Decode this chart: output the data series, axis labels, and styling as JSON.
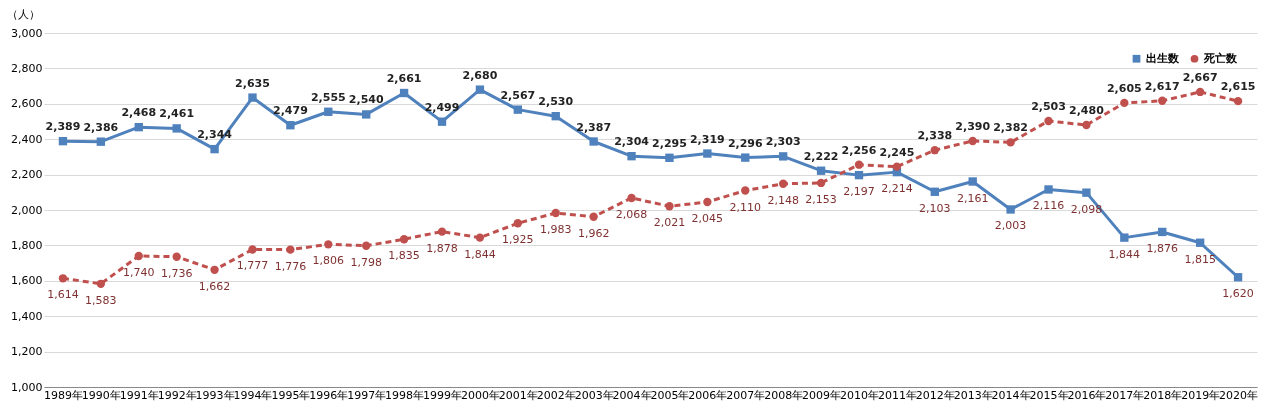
{
  "chart_data": {
    "type": "line",
    "ylabel": "（人）",
    "categories": [
      "1989年",
      "1990年",
      "1991年",
      "1992年",
      "1993年",
      "1994年",
      "1995年",
      "1996年",
      "1997年",
      "1998年",
      "1999年",
      "2000年",
      "2001年",
      "2002年",
      "2003年",
      "2004年",
      "2005年",
      "2006年",
      "2007年",
      "2008年",
      "2009年",
      "2010年",
      "2011年",
      "2012年",
      "2013年",
      "2014年",
      "2015年",
      "2016年",
      "2017年",
      "2018年",
      "2019年",
      "2020年"
    ],
    "series": [
      {
        "name": "出生数",
        "color": "#4f81bd",
        "marker": "square",
        "line_style": "solid",
        "values": [
          2389,
          2386,
          2468,
          2461,
          2344,
          2635,
          2479,
          2555,
          2540,
          2661,
          2499,
          2680,
          2567,
          2530,
          2387,
          2304,
          2295,
          2319,
          2296,
          2303,
          2222,
          2197,
          2214,
          2103,
          2161,
          2003,
          2116,
          2098,
          1844,
          1876,
          1815,
          1620
        ],
        "value_labels": [
          "2,389",
          "2,386",
          "2,468",
          "2,461",
          "2,344",
          "2,635",
          "2,479",
          "2,555",
          "2,540",
          "2,661",
          "2,499",
          "2,680",
          "2,567",
          "2,530",
          "2,387",
          "2,304",
          "2,295",
          "2,319",
          "2,296",
          "2,303",
          "2,222",
          "2,197",
          "2,214",
          "2,103",
          "2,161",
          "2,003",
          "2,116",
          "2,098",
          "1,844",
          "1,876",
          "1,815",
          "1,620"
        ]
      },
      {
        "name": "死亡数",
        "color": "#c0504d",
        "marker": "circle",
        "line_style": "dashed",
        "values": [
          1614,
          1583,
          1740,
          1736,
          1662,
          1777,
          1776,
          1806,
          1798,
          1835,
          1878,
          1844,
          1925,
          1983,
          1962,
          2068,
          2021,
          2045,
          2110,
          2148,
          2153,
          2256,
          2245,
          2338,
          2390,
          2382,
          2503,
          2480,
          2605,
          2617,
          2667,
          2615
        ],
        "value_labels": [
          "1,614",
          "1,583",
          "1,740",
          "1,736",
          "1,662",
          "1,777",
          "1,776",
          "1,806",
          "1,798",
          "1,835",
          "1,878",
          "1,844",
          "1,925",
          "1,983",
          "1,962",
          "2,068",
          "2,021",
          "2,045",
          "2,110",
          "2,148",
          "2,153",
          "2,256",
          "2,245",
          "2,338",
          "2,390",
          "2,382",
          "2,503",
          "2,480",
          "2,605",
          "2,617",
          "2,667",
          "2,615"
        ]
      }
    ],
    "ylim": [
      1000,
      3000
    ],
    "yticks": [
      {
        "value": 1000,
        "label": "1,000"
      },
      {
        "value": 1200,
        "label": "1,200"
      },
      {
        "value": 1400,
        "label": "1,400"
      },
      {
        "value": 1600,
        "label": "1,600"
      },
      {
        "value": 1800,
        "label": "1,800"
      },
      {
        "value": 2000,
        "label": "2,000"
      },
      {
        "value": 2200,
        "label": "2,200"
      },
      {
        "value": 2400,
        "label": "2,400"
      },
      {
        "value": 2600,
        "label": "2,600"
      },
      {
        "value": 2800,
        "label": "2,800"
      },
      {
        "value": 3000,
        "label": "3,000"
      }
    ],
    "grid": "y",
    "legend": "top right"
  }
}
